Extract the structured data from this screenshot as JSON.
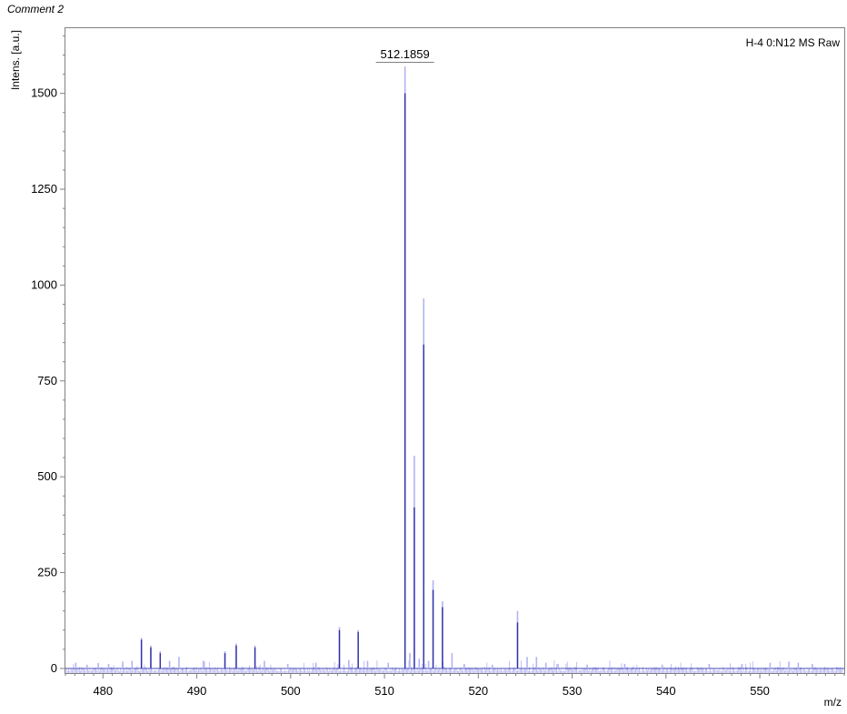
{
  "comment": "Comment 2",
  "chart_data": {
    "type": "line",
    "title": "H-4 0:N12 MS Raw",
    "xlabel": "m/z",
    "ylabel": "Intens. [a.u.]",
    "xlim": [
      476,
      559
    ],
    "ylim": [
      -12,
      1670
    ],
    "xticks": [
      480,
      490,
      500,
      510,
      520,
      530,
      540,
      550
    ],
    "yticks": [
      0,
      250,
      500,
      750,
      1000,
      1250,
      1500
    ],
    "peak_label": {
      "x": 512.1859,
      "text": "512.1859"
    },
    "colors": {
      "raw": "#b3b3f2",
      "centroid": "#2f2fa8"
    },
    "series": [
      {
        "style": "raw",
        "points": [
          [
            477.1,
            15
          ],
          [
            478.3,
            10
          ],
          [
            479.5,
            14
          ],
          [
            480.6,
            12
          ],
          [
            482.1,
            18
          ],
          [
            483.1,
            20
          ],
          [
            484.1,
            80
          ],
          [
            485.1,
            60
          ],
          [
            486.1,
            45
          ],
          [
            487.1,
            20
          ],
          [
            488.1,
            30
          ],
          [
            490.7,
            20
          ],
          [
            493.0,
            45
          ],
          [
            494.2,
            65
          ],
          [
            496.2,
            60
          ],
          [
            497.2,
            20
          ],
          [
            499.7,
            12
          ],
          [
            502.7,
            15
          ],
          [
            505.2,
            108
          ],
          [
            506.2,
            22
          ],
          [
            507.2,
            100
          ],
          [
            508.2,
            20
          ],
          [
            510.4,
            15
          ],
          [
            512.19,
            1570
          ],
          [
            512.7,
            40
          ],
          [
            513.18,
            555
          ],
          [
            513.7,
            25
          ],
          [
            514.18,
            965
          ],
          [
            514.7,
            20
          ],
          [
            515.18,
            230
          ],
          [
            516.18,
            175
          ],
          [
            517.2,
            40
          ],
          [
            518.5,
            12
          ],
          [
            521.5,
            10
          ],
          [
            524.18,
            150
          ],
          [
            525.2,
            30
          ],
          [
            526.2,
            30
          ],
          [
            527.2,
            15
          ],
          [
            528.5,
            12
          ],
          [
            531.6,
            10
          ],
          [
            535.6,
            12
          ],
          [
            539.6,
            10
          ],
          [
            544.6,
            12
          ],
          [
            548.1,
            12
          ],
          [
            551.1,
            15
          ],
          [
            553.1,
            18
          ],
          [
            554.1,
            15
          ],
          [
            555.6,
            12
          ]
        ]
      },
      {
        "style": "centroid",
        "points": [
          [
            484.1,
            75
          ],
          [
            485.1,
            55
          ],
          [
            486.1,
            40
          ],
          [
            493.0,
            40
          ],
          [
            494.2,
            60
          ],
          [
            496.2,
            55
          ],
          [
            505.2,
            100
          ],
          [
            507.2,
            95
          ],
          [
            512.19,
            1500
          ],
          [
            513.18,
            420
          ],
          [
            514.18,
            845
          ],
          [
            515.18,
            205
          ],
          [
            516.18,
            160
          ],
          [
            524.18,
            120
          ]
        ]
      }
    ]
  }
}
